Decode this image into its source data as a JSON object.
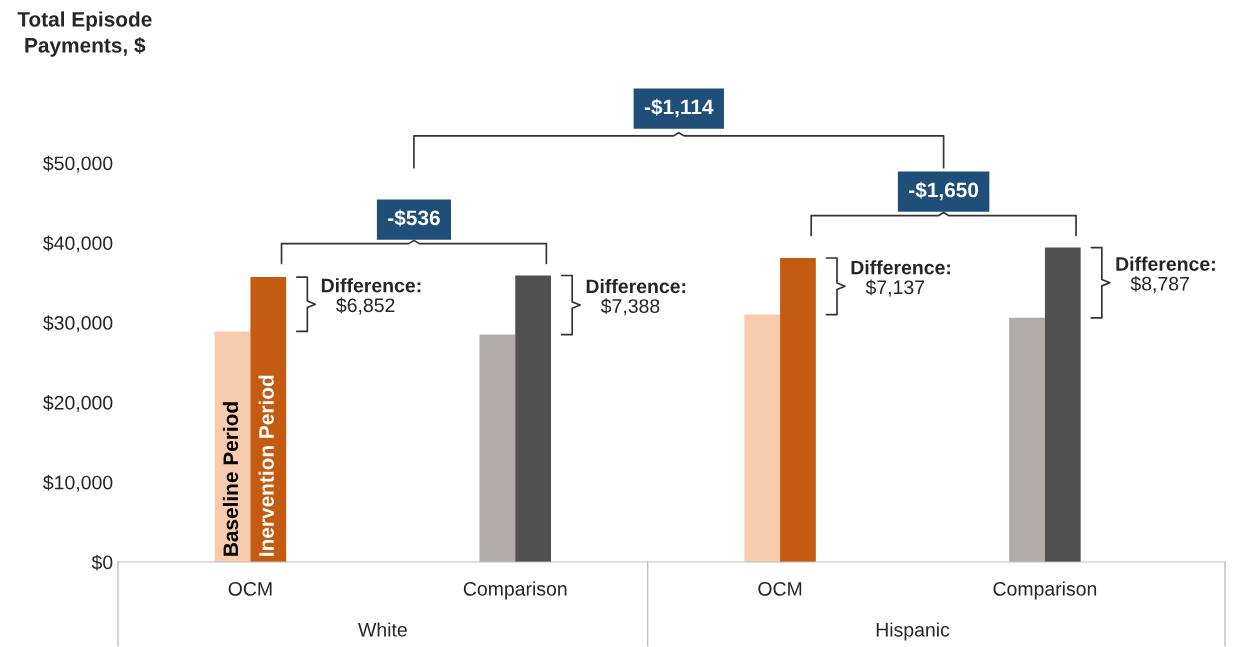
{
  "chart_data": {
    "type": "bar",
    "ylabel": "Total Episode\nPayments, $",
    "categories": [
      "OCM",
      "Comparison",
      "OCM",
      "Comparison"
    ],
    "series": [
      {
        "name": "Baseline Period",
        "colors": [
          "#f8cbad",
          "#b1abaa",
          "#f8cbad",
          "#b1abaa"
        ],
        "values": [
          28900,
          28500,
          31000,
          30600
        ]
      },
      {
        "name": "Inervention Period",
        "colors": [
          "#c55a11",
          "#505050",
          "#c55a11",
          "#505050"
        ],
        "values": [
          35700,
          35900,
          38100,
          39400
        ]
      }
    ],
    "ylim": [
      0,
      50000
    ],
    "yticks": [
      {
        "value": 0,
        "label": "$0"
      },
      {
        "value": 10000,
        "label": "$10,000"
      },
      {
        "value": 20000,
        "label": "$20,000"
      },
      {
        "value": 30000,
        "label": "$30,000"
      },
      {
        "value": 40000,
        "label": "$40,000"
      },
      {
        "value": 50000,
        "label": "$50,000"
      }
    ],
    "annotations": [
      "Difference:\n$6,852",
      "Difference:\n$7,388",
      "Difference:\n$7,137",
      "Difference:\n$8,787",
      "-$536",
      "-$1,650",
      "-$1,114",
      "White",
      "Hispanic"
    ],
    "grid": false,
    "legend": false
  }
}
